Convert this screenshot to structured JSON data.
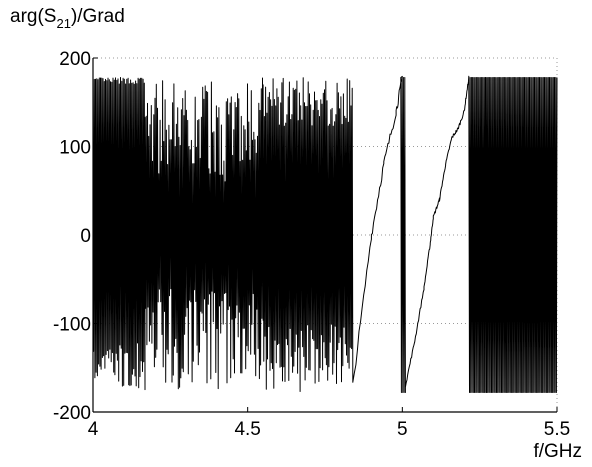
{
  "chart_data": {
    "type": "line",
    "title": "",
    "ylabel": {
      "base": "arg(S",
      "sub": "21",
      "tail": ")/Grad"
    },
    "xlabel": "f/GHz",
    "xlim": [
      4,
      5.5
    ],
    "ylim": [
      -200,
      200
    ],
    "grid": "y-dotted",
    "x_ticks": [
      {
        "value": 4,
        "label": "4"
      },
      {
        "value": 4.5,
        "label": "4.5"
      },
      {
        "value": 5,
        "label": "5"
      },
      {
        "value": 5.5,
        "label": "5.5"
      }
    ],
    "y_ticks": [
      {
        "value": 200,
        "label": "200"
      },
      {
        "value": 100,
        "label": "100"
      },
      {
        "value": 0,
        "label": "0"
      },
      {
        "value": -100,
        "label": "-100"
      },
      {
        "value": -200,
        "label": "-200"
      }
    ],
    "series": [
      {
        "color": "#000000",
        "segments": [
          {
            "kind": "dense_wrap",
            "x": [
              4.0,
              4.168
            ],
            "amp": [
              170,
              178
            ],
            "low": [
              -120,
              -175
            ]
          },
          {
            "kind": "dense_wrap",
            "x": [
              4.168,
              4.29
            ],
            "amp": [
              60,
              175
            ],
            "low": [
              -60,
              -175
            ]
          },
          {
            "kind": "dense_wrap",
            "x": [
              4.29,
              4.55
            ],
            "amp": [
              60,
              178
            ],
            "low": [
              -60,
              -178
            ]
          },
          {
            "kind": "dense_wrap",
            "x": [
              4.55,
              4.72
            ],
            "amp": [
              120,
              178
            ],
            "low": [
              -100,
              -178
            ]
          },
          {
            "kind": "dense_wrap",
            "x": [
              4.72,
              4.84
            ],
            "amp": [
              120,
              178
            ],
            "low": [
              -100,
              -170
            ]
          },
          {
            "kind": "ramp_band",
            "points": [
              [
                4.84,
                -170
              ],
              [
                4.9,
                0
              ],
              [
                4.94,
                80
              ],
              [
                4.98,
                140
              ],
              [
                5.0,
                178
              ]
            ]
          },
          {
            "kind": "dense_wrap",
            "x": [
              4.995,
              5.01
            ],
            "amp": [
              178,
              178
            ],
            "low": [
              -178,
              -178
            ]
          },
          {
            "kind": "ramp_line",
            "points": [
              [
                5.01,
                -170
              ],
              [
                5.04,
                -120
              ],
              [
                5.07,
                -60
              ],
              [
                5.09,
                -10
              ],
              [
                5.1,
                20
              ],
              [
                5.12,
                40
              ],
              [
                5.14,
                80
              ],
              [
                5.16,
                110
              ],
              [
                5.18,
                120
              ],
              [
                5.2,
                140
              ],
              [
                5.215,
                178
              ]
            ]
          },
          {
            "kind": "dense_wrap",
            "x": [
              5.215,
              5.27
            ],
            "amp": [
              178,
              178
            ],
            "low": [
              -178,
              -178
            ]
          },
          {
            "kind": "dense_wrap",
            "x": [
              5.27,
              5.5
            ],
            "amp": [
              178,
              178
            ],
            "low": [
              -178,
              -178
            ]
          }
        ]
      }
    ]
  }
}
